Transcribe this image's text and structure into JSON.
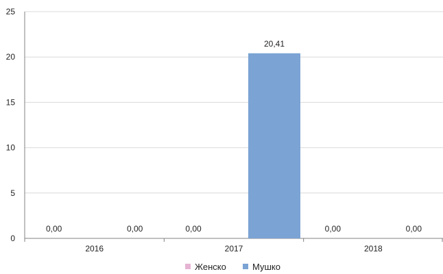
{
  "chart_data": {
    "type": "bar",
    "categories": [
      "2016",
      "2017",
      "2018"
    ],
    "series": [
      {
        "name": "Женско",
        "values": [
          0,
          0,
          0
        ],
        "labels": [
          "0,00",
          "0,00",
          "0,00"
        ],
        "color": "#e6b3d3"
      },
      {
        "name": "Мушко",
        "values": [
          0,
          20.41,
          0
        ],
        "labels": [
          "0,00",
          "20,41",
          "0,00"
        ],
        "color": "#7ba3d4"
      }
    ],
    "title": "",
    "xlabel": "",
    "ylabel": "",
    "ylim": [
      0,
      25
    ],
    "yticks": [
      0,
      5,
      10,
      15,
      20,
      25
    ],
    "grid": true,
    "legend_position": "bottom"
  }
}
